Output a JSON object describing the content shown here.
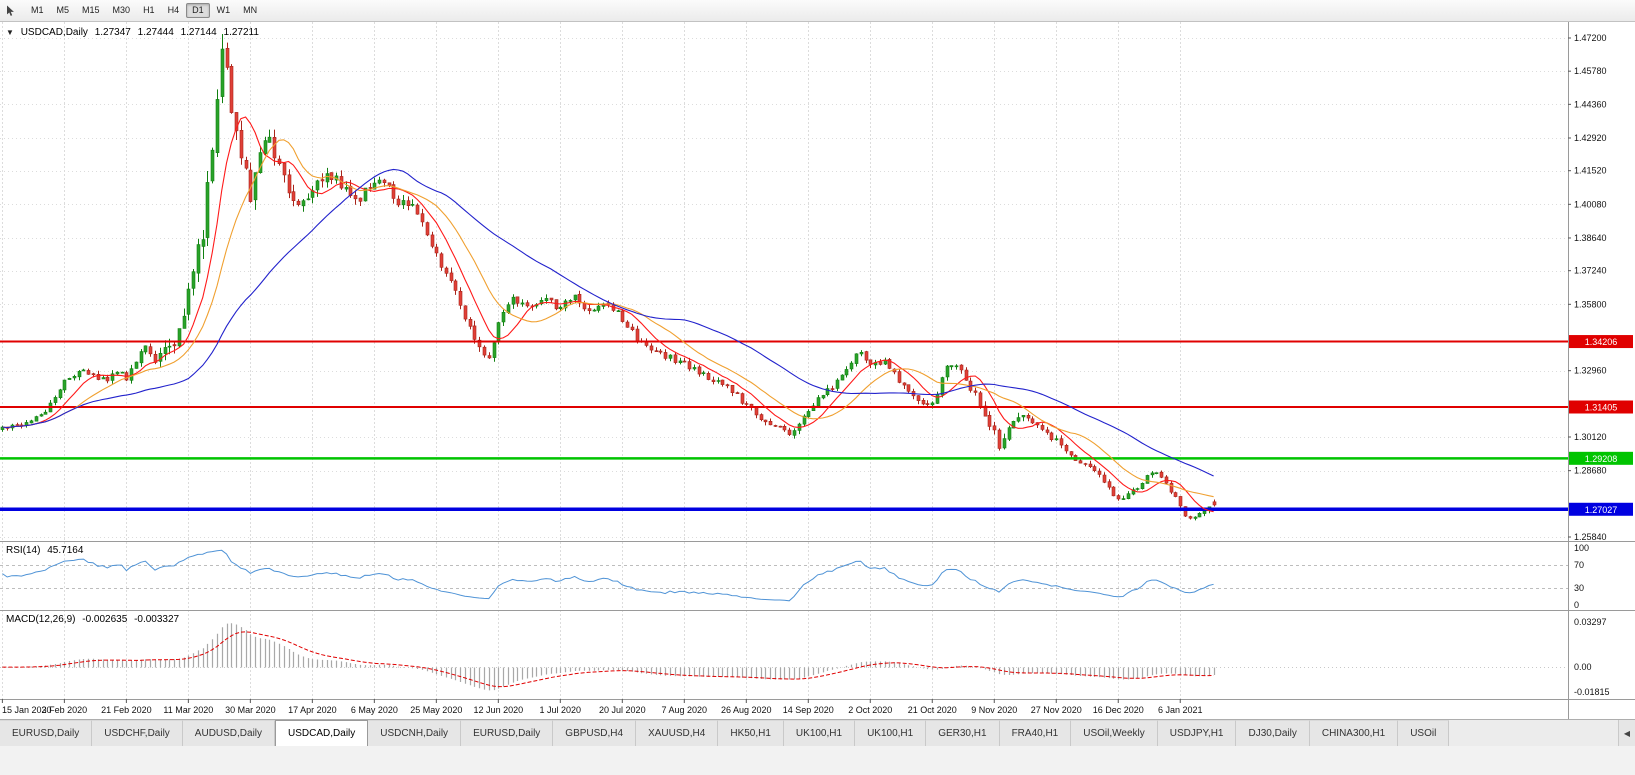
{
  "icons": {
    "one_click_collapse": "▼",
    "tabs_scroll_left": "◀",
    "cursor_tool": "pointer-arrow"
  },
  "toolbar": {
    "timeframes": [
      {
        "label": "M1",
        "active": false
      },
      {
        "label": "M5",
        "active": false
      },
      {
        "label": "M15",
        "active": false
      },
      {
        "label": "M30",
        "active": false
      },
      {
        "label": "H1",
        "active": false
      },
      {
        "label": "H4",
        "active": false
      },
      {
        "label": "D1",
        "active": true
      },
      {
        "label": "W1",
        "active": false
      },
      {
        "label": "MN",
        "active": false
      }
    ]
  },
  "chart": {
    "symbol": "USDCAD,Daily",
    "quote": {
      "open": "1.27347",
      "high": "1.27444",
      "low": "1.27144",
      "close": "1.27211"
    }
  },
  "rsi": {
    "name": "RSI(14)",
    "value": "45.7164",
    "period": 14,
    "axis_labels": [
      "100",
      "70",
      "30",
      "0"
    ],
    "guide_levels": [
      70,
      30
    ],
    "line_color": "#4f93d6"
  },
  "macd": {
    "name": "MACD(12,26,9)",
    "value": "-0.002635",
    "signal_value": "-0.003327",
    "fast": 12,
    "slow": 26,
    "signal": 9,
    "axis_labels": [
      "0.03297",
      "0.00",
      "-0.01815"
    ],
    "histogram_color": "#a8a8a8",
    "signal_color": "#e00000"
  },
  "chart_data": {
    "type": "candlestick",
    "symbol": "USDCAD",
    "timeframe": "Daily",
    "candle_count": 255,
    "up_color": "#29a329",
    "up_border": "#118011",
    "down_color": "#e04038",
    "down_border": "#a8241a",
    "close_waypoints": [
      [
        0,
        1.3045
      ],
      [
        4,
        1.306
      ],
      [
        8,
        1.3105
      ],
      [
        11,
        1.318
      ],
      [
        13,
        1.325
      ],
      [
        16,
        1.3295
      ],
      [
        19,
        1.327
      ],
      [
        22,
        1.325
      ],
      [
        24,
        1.329
      ],
      [
        26,
        1.326
      ],
      [
        28,
        1.333
      ],
      [
        30,
        1.3395
      ],
      [
        32,
        1.335
      ],
      [
        34,
        1.338
      ],
      [
        36,
        1.343
      ],
      [
        38,
        1.356
      ],
      [
        40,
        1.371
      ],
      [
        42,
        1.387
      ],
      [
        44,
        1.428
      ],
      [
        46,
        1.462
      ],
      [
        47,
        1.456
      ],
      [
        48,
        1.444
      ],
      [
        50,
        1.422
      ],
      [
        52,
        1.406
      ],
      [
        54,
        1.419
      ],
      [
        56,
        1.43
      ],
      [
        58,
        1.417
      ],
      [
        60,
        1.406
      ],
      [
        62,
        1.399
      ],
      [
        65,
        1.409
      ],
      [
        68,
        1.415
      ],
      [
        71,
        1.409
      ],
      [
        74,
        1.403
      ],
      [
        78,
        1.408
      ],
      [
        80,
        1.412
      ],
      [
        83,
        1.402
      ],
      [
        86,
        1.399
      ],
      [
        88,
        1.392
      ],
      [
        91,
        1.379
      ],
      [
        94,
        1.369
      ],
      [
        97,
        1.352
      ],
      [
        100,
        1.34
      ],
      [
        102,
        1.334
      ],
      [
        104,
        1.352
      ],
      [
        107,
        1.361
      ],
      [
        110,
        1.356
      ],
      [
        114,
        1.359
      ],
      [
        117,
        1.357
      ],
      [
        120,
        1.361
      ],
      [
        123,
        1.355
      ],
      [
        127,
        1.358
      ],
      [
        130,
        1.352
      ],
      [
        133,
        1.343
      ],
      [
        136,
        1.339
      ],
      [
        140,
        1.335
      ],
      [
        143,
        1.333
      ],
      [
        146,
        1.329
      ],
      [
        150,
        1.325
      ],
      [
        153,
        1.321
      ],
      [
        156,
        1.315
      ],
      [
        159,
        1.308
      ],
      [
        162,
        1.305
      ],
      [
        165,
        1.303
      ],
      [
        168,
        1.309
      ],
      [
        171,
        1.317
      ],
      [
        174,
        1.323
      ],
      [
        177,
        1.33
      ],
      [
        180,
        1.339
      ],
      [
        182,
        1.332
      ],
      [
        185,
        1.333
      ],
      [
        188,
        1.325
      ],
      [
        191,
        1.318
      ],
      [
        194,
        1.314
      ],
      [
        196,
        1.32
      ],
      [
        198,
        1.331
      ],
      [
        200,
        1.332
      ],
      [
        202,
        1.326
      ],
      [
        205,
        1.316
      ],
      [
        207,
        1.307
      ],
      [
        209,
        1.298
      ],
      [
        211,
        1.306
      ],
      [
        214,
        1.309
      ],
      [
        217,
        1.305
      ],
      [
        221,
        1.3
      ],
      [
        224,
        1.293
      ],
      [
        227,
        1.289
      ],
      [
        230,
        1.285
      ],
      [
        232,
        1.279
      ],
      [
        234,
        1.274
      ],
      [
        237,
        1.278
      ],
      [
        240,
        1.284
      ],
      [
        242,
        1.287
      ],
      [
        244,
        1.282
      ],
      [
        246,
        1.275
      ],
      [
        248,
        1.268
      ],
      [
        250,
        1.266
      ],
      [
        252,
        1.2705
      ],
      [
        254,
        1.2721
      ]
    ],
    "volatility_waypoints": [
      [
        0,
        0.0015
      ],
      [
        30,
        0.0022
      ],
      [
        38,
        0.006
      ],
      [
        46,
        0.0085
      ],
      [
        52,
        0.0065
      ],
      [
        60,
        0.0045
      ],
      [
        70,
        0.0035
      ],
      [
        85,
        0.003
      ],
      [
        100,
        0.0028
      ],
      [
        120,
        0.0022
      ],
      [
        140,
        0.002
      ],
      [
        160,
        0.002
      ],
      [
        180,
        0.0022
      ],
      [
        200,
        0.0022
      ],
      [
        210,
        0.0028
      ],
      [
        225,
        0.0018
      ],
      [
        240,
        0.0016
      ],
      [
        254,
        0.0014
      ]
    ],
    "moving_averages": [
      {
        "period": 8,
        "color": "#ff1a1a"
      },
      {
        "period": 16,
        "color": "#f0a030"
      },
      {
        "period": 40,
        "color": "#2222cc"
      }
    ],
    "levels": [
      {
        "price": 1.34206,
        "label": "1.34206",
        "color": "#e00000",
        "width": 2
      },
      {
        "price": 1.31405,
        "label": "1.31405",
        "color": "#e00000",
        "width": 2
      },
      {
        "price": 1.29208,
        "label": "1.29208",
        "color": "#00c400",
        "width": 2.5
      },
      {
        "price": 1.27027,
        "label": "1.27027",
        "color": "#0000e0",
        "width": 3.5
      }
    ],
    "y_axis": {
      "tick_labels": [
        "1.47200",
        "1.45780",
        "1.44360",
        "1.42920",
        "1.41520",
        "1.40080",
        "1.38640",
        "1.37240",
        "1.35800",
        "1.32960",
        "1.30120",
        "1.28680",
        "1.25840"
      ]
    },
    "x_axis": {
      "tick_indices": [
        0,
        13,
        26,
        39,
        52,
        65,
        78,
        91,
        104,
        117,
        130,
        143,
        156,
        169,
        182,
        195,
        208,
        221,
        234,
        247
      ],
      "dates": [
        "15 Jan 2020",
        "3 Feb 2020",
        "21 Feb 2020",
        "11 Mar 2020",
        "30 Mar 2020",
        "17 Apr 2020",
        "6 May 2020",
        "25 May 2020",
        "12 Jun 2020",
        "1 Jul 2020",
        "20 Jul 2020",
        "7 Aug 2020",
        "26 Aug 2020",
        "14 Sep 2020",
        "2 Oct 2020",
        "21 Oct 2020",
        "9 Nov 2020",
        "27 Nov 2020",
        "16 Dec 2020",
        "6 Jan 2021"
      ]
    }
  },
  "tabbar": {
    "tabs": [
      {
        "label": "EURUSD,Daily",
        "active": false
      },
      {
        "label": "USDCHF,Daily",
        "active": false
      },
      {
        "label": "AUDUSD,Daily",
        "active": false
      },
      {
        "label": "USDCAD,Daily",
        "active": true
      },
      {
        "label": "USDCNH,Daily",
        "active": false
      },
      {
        "label": "EURUSD,Daily",
        "active": false
      },
      {
        "label": "GBPUSD,H4",
        "active": false
      },
      {
        "label": "XAUUSD,H4",
        "active": false
      },
      {
        "label": "HK50,H1",
        "active": false
      },
      {
        "label": "UK100,H1",
        "active": false
      },
      {
        "label": "UK100,H1",
        "active": false
      },
      {
        "label": "GER30,H1",
        "active": false
      },
      {
        "label": "FRA40,H1",
        "active": false
      },
      {
        "label": "USOil,Weekly",
        "active": false
      },
      {
        "label": "USDJPY,H1",
        "active": false
      },
      {
        "label": "DJ30,Daily",
        "active": false
      },
      {
        "label": "CHINA300,H1",
        "active": false
      },
      {
        "label": "USOil",
        "active": false
      }
    ]
  }
}
